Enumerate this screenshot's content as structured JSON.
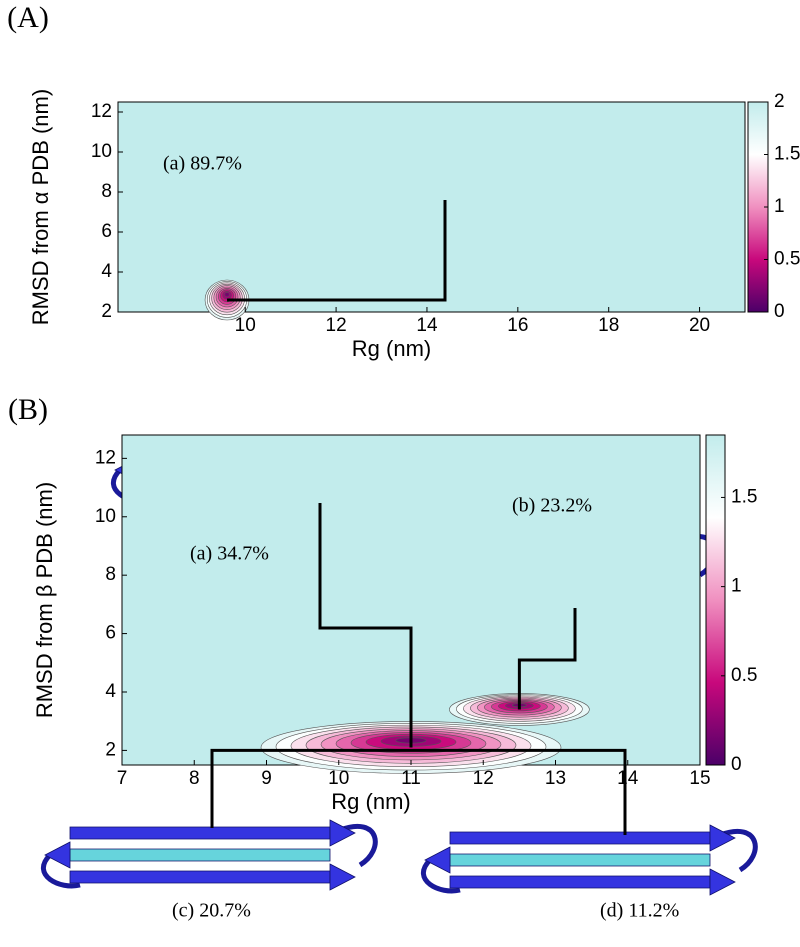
{
  "chart_data": [
    {
      "type": "contour",
      "panel": "(A)",
      "xlabel": "Rg (nm)",
      "ylabel": "RMSD from α PDB (nm)",
      "xlim": [
        7.2,
        21.0
      ],
      "xticks": [
        10,
        12,
        14,
        16,
        18,
        20
      ],
      "ylim": [
        2,
        12.5
      ],
      "yticks": [
        2,
        4,
        6,
        8,
        10,
        12
      ],
      "clim": [
        0,
        2
      ],
      "cticks": [
        0,
        0.5,
        1,
        1.5,
        2
      ],
      "annotations": [
        {
          "text": "(a) 89.7%",
          "basin": {
            "x": 9.6,
            "y": 2.6
          }
        }
      ]
    },
    {
      "type": "contour",
      "panel": "(B)",
      "xlabel": "Rg (nm)",
      "ylabel": "RMSD from β PDB (nm)",
      "xlim": [
        7,
        15
      ],
      "xticks": [
        7,
        8,
        9,
        10,
        11,
        12,
        13,
        14,
        15
      ],
      "ylim": [
        1.5,
        12.8
      ],
      "yticks": [
        2,
        4,
        6,
        8,
        10,
        12
      ],
      "clim": [
        0,
        1.85
      ],
      "cticks": [
        0,
        0.5,
        1,
        1.5
      ],
      "annotations": [
        {
          "text": "(a) 34.7%",
          "basin": {
            "x": 11.0,
            "y": 2.1
          }
        },
        {
          "text": "(b) 23.2%",
          "basin": {
            "x": 12.5,
            "y": 3.4
          }
        },
        {
          "text": "(c) 20.7%",
          "basin": {
            "x": 11.0,
            "y": 2.0
          }
        },
        {
          "text": "(d) 11.2%",
          "basin": {
            "x": 11.0,
            "y": 2.0
          }
        }
      ]
    }
  ]
}
